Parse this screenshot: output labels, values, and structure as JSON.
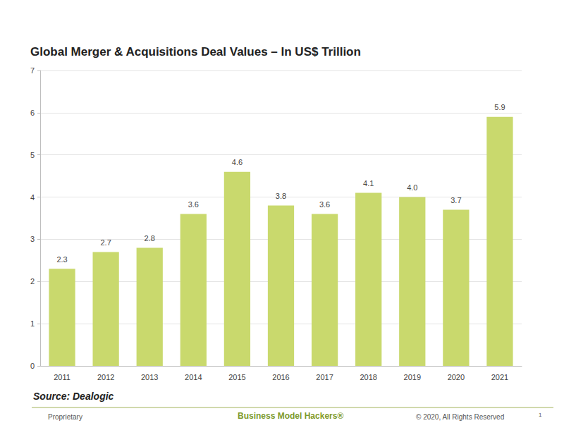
{
  "chart_data": {
    "type": "bar",
    "title": "Global Merger & Acquisitions Deal Values – In US$ Trillion",
    "categories": [
      "2011",
      "2012",
      "2013",
      "2014",
      "2015",
      "2016",
      "2017",
      "2018",
      "2019",
      "2020",
      "2021"
    ],
    "values": [
      2.3,
      2.7,
      2.8,
      3.6,
      4.6,
      3.8,
      3.6,
      4.1,
      4.0,
      3.7,
      5.9
    ],
    "value_labels": [
      "2.3",
      "2.7",
      "2.8",
      "3.6",
      "4.6",
      "3.8",
      "3.6",
      "4.1",
      "4.0",
      "3.7",
      "5.9"
    ],
    "color": "#c9d96d",
    "ylim": [
      0,
      7
    ],
    "yticks": [
      0,
      1,
      2,
      3,
      4,
      5,
      6,
      7
    ],
    "grid": true,
    "data_labels": true,
    "source": "Source: Dealogic"
  },
  "footer": {
    "left": "Proprietary",
    "center": "Business Model Hackers®",
    "right": "© 2020, All Rights Reserved",
    "page": "1"
  }
}
